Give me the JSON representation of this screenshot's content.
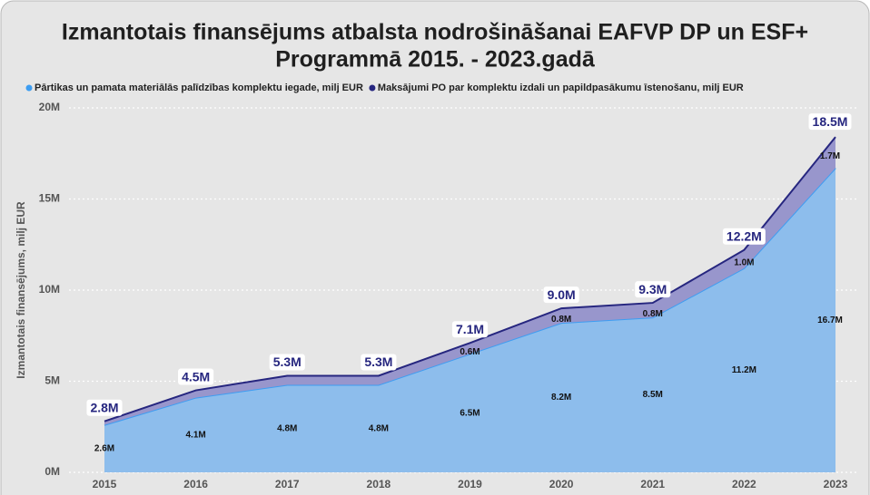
{
  "chart_data": {
    "type": "stacked_area",
    "title": [
      "Izmantotais finansējums atbalsta nodrošināšanai EAFVP DP un ESF+",
      "Programmā 2015. - 2023.gadā"
    ],
    "y_label": "Izmantotais finansējums, milj EUR",
    "categories": [
      "2015",
      "2016",
      "2017",
      "2018",
      "2019",
      "2020",
      "2021",
      "2022",
      "2023"
    ],
    "series": [
      {
        "name": "Pārtikas un pamata materiālās palīdzības komplektu iegade, milj EUR",
        "color": "#3d9df2",
        "fill": "#8dbdec",
        "values": [
          2.6,
          4.1,
          4.8,
          4.8,
          6.5,
          8.2,
          8.5,
          11.2,
          16.7
        ],
        "value_labels": [
          "2.6M",
          "4.1M",
          "4.8M",
          "4.8M",
          "6.5M",
          "8.2M",
          "8.5M",
          "11.2M",
          "16.7M"
        ]
      },
      {
        "name": "Maksājumi PO par komplektu izdali un papildpasākumu īstenošanu, milj EUR",
        "color": "#26267f",
        "fill": "#9896cc",
        "values": [
          0.2,
          0.4,
          0.5,
          0.5,
          0.6,
          0.8,
          0.8,
          1.0,
          1.7
        ],
        "value_labels": [
          null,
          null,
          null,
          null,
          "0.6M",
          "0.8M",
          "0.8M",
          "1.0M",
          "1.7M"
        ]
      }
    ],
    "totals": {
      "values": [
        2.8,
        4.5,
        5.3,
        5.3,
        7.1,
        9.0,
        9.3,
        12.2,
        18.5
      ],
      "value_labels": [
        "2.8M",
        "4.5M",
        "5.3M",
        "5.3M",
        "7.1M",
        "9.0M",
        "9.3M",
        "12.2M",
        "18.5M"
      ]
    },
    "ylim": [
      0,
      20
    ],
    "yticks": [
      {
        "value": 0,
        "label": "0M"
      },
      {
        "value": 5,
        "label": "5M"
      },
      {
        "value": 10,
        "label": "10M"
      },
      {
        "value": 15,
        "label": "15M"
      },
      {
        "value": 20,
        "label": "20M"
      }
    ],
    "grid": true,
    "legend": "top"
  }
}
